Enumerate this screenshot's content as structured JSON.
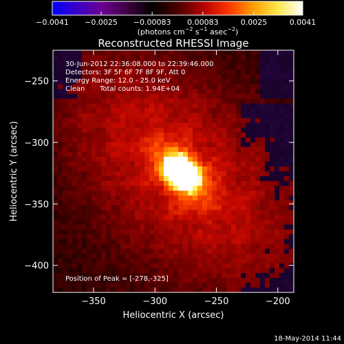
{
  "chart_data": {
    "type": "heatmap",
    "title": "Reconstructed RHESSI Image",
    "xlabel": "Heliocentric X (arcsec)",
    "ylabel": "Heliocentric Y (arcsec)",
    "xlim": [
      -383,
      -187
    ],
    "ylim": [
      -422,
      -225
    ],
    "x_ticks": [
      -350,
      -300,
      -250,
      -200
    ],
    "x_tick_labels": [
      "−350",
      "−300",
      "−250",
      "−200"
    ],
    "y_ticks": [
      -250,
      -300,
      -350,
      -400
    ],
    "y_tick_labels": [
      "−250",
      "−300",
      "−350",
      "−400"
    ],
    "colorbar": {
      "min": -0.0041,
      "max": 0.0041,
      "ticks": [
        -0.0041,
        -0.0025,
        -0.00083,
        0.00083,
        0.0025,
        0.0041
      ],
      "tick_labels": [
        "−0.0041",
        "−0.0025",
        "−0.00083",
        "0.00083",
        "0.0025",
        "0.0041"
      ],
      "units_main": "(photons cm",
      "units_exp1": "−2",
      "units_mid": " s",
      "units_exp2": "−1",
      "units_mid2": " asec",
      "units_exp3": "−2",
      "units_end": ")",
      "colors": [
        "#0000ff",
        "#3a00c8",
        "#6a0090",
        "#3c0040",
        "#000000",
        "#4a0000",
        "#b00000",
        "#ff3000",
        "#ff9a00",
        "#ffe84a",
        "#ffffff"
      ]
    },
    "annotations": [
      "30-Jun-2012 22:36:08.000 to 22:39:46.000",
      "Detectors: 3F 5F 6F 7F 8F 9F, Att 0",
      "Energy Range: 12.0 - 25.0 keV"
    ],
    "clean_label": "Clean",
    "total_counts": "Total counts: 1.94E+04",
    "peak_label": "Position of Peak = [-278,-325]",
    "peak": {
      "x": -278,
      "y": -325,
      "value": 0.0041
    },
    "footer_timestamp": "18-May-2014 11:44"
  }
}
